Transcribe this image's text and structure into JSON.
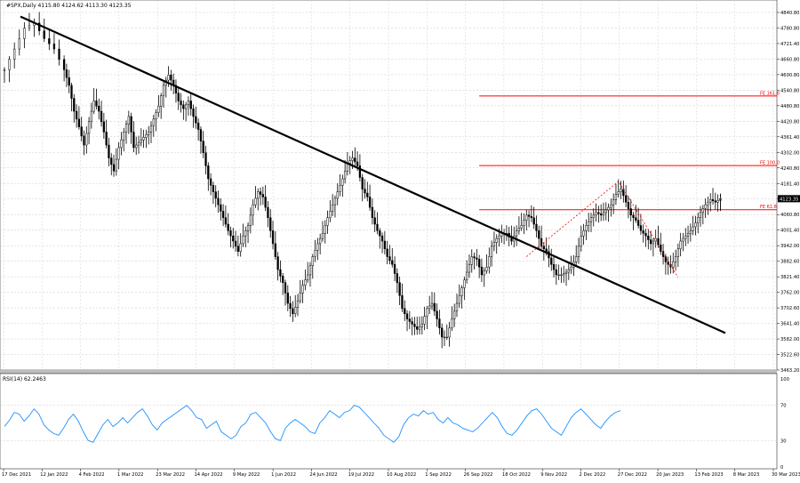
{
  "window": {
    "symbol_info": "#SPX,Daily  4115.80 4124.62 4113.30 4123.35",
    "rsi_label": "RSI(14) 62.2463"
  },
  "chart_data": [
    {
      "type": "candlestick",
      "title": "#SPX,Daily",
      "ohlc_last": {
        "open": 4115.8,
        "high": 4124.62,
        "low": 4113.3,
        "close": 4123.35
      },
      "current_price_label": "4123.35",
      "y_ticks": [
        "4840.80",
        "4780.80",
        "4721.40",
        "4660.80",
        "4600.80",
        "4540.80",
        "4480.80",
        "4420.80",
        "4361.40",
        "4302.00",
        "4240.80",
        "4181.40",
        "4120.80",
        "4060.80",
        "4001.40",
        "3942.00",
        "3882.60",
        "3821.40",
        "3762.00",
        "3702.60",
        "3641.40",
        "3582.00",
        "3522.60",
        "3463.20"
      ],
      "ylim": [
        3463.2,
        4862
      ],
      "x_ticks": [
        "17 Dec 2021",
        "12 Jan 2022",
        "4 Feb 2022",
        "1 Mar 2022",
        "23 Mar 2022",
        "14 Apr 2022",
        "9 May 2022",
        "1 Jun 2022",
        "24 Jun 2022",
        "19 Jul 2022",
        "10 Aug 2022",
        "1 Sep 2022",
        "26 Sep 2022",
        "18 Oct 2022",
        "9 Nov 2022",
        "2 Dec 2022",
        "27 Dec 2022",
        "20 Jan 2023",
        "13 Feb 2023",
        "8 Mar 2023",
        "30 Mar 2023"
      ],
      "close_path": [
        [
          0,
          4620
        ],
        [
          4,
          4700
        ],
        [
          8,
          4780
        ],
        [
          12,
          4800
        ],
        [
          16,
          4740
        ],
        [
          20,
          4700
        ],
        [
          24,
          4620
        ],
        [
          26,
          4560
        ],
        [
          28,
          4460
        ],
        [
          30,
          4400
        ],
        [
          32,
          4330
        ],
        [
          34,
          4420
        ],
        [
          36,
          4500
        ],
        [
          38,
          4460
        ],
        [
          40,
          4380
        ],
        [
          42,
          4280
        ],
        [
          44,
          4230
        ],
        [
          46,
          4320
        ],
        [
          48,
          4380
        ],
        [
          50,
          4440
        ],
        [
          52,
          4320
        ],
        [
          54,
          4340
        ],
        [
          56,
          4360
        ],
        [
          58,
          4380
        ],
        [
          60,
          4430
        ],
        [
          62,
          4480
        ],
        [
          64,
          4560
        ],
        [
          66,
          4600
        ],
        [
          68,
          4560
        ],
        [
          70,
          4500
        ],
        [
          72,
          4470
        ],
        [
          74,
          4500
        ],
        [
          76,
          4440
        ],
        [
          78,
          4390
        ],
        [
          80,
          4300
        ],
        [
          82,
          4200
        ],
        [
          84,
          4150
        ],
        [
          86,
          4100
        ],
        [
          88,
          4050
        ],
        [
          90,
          4000
        ],
        [
          92,
          3960
        ],
        [
          94,
          3920
        ],
        [
          96,
          3980
        ],
        [
          98,
          4020
        ],
        [
          100,
          4100
        ],
        [
          102,
          4150
        ],
        [
          104,
          4130
        ],
        [
          106,
          4050
        ],
        [
          108,
          3950
        ],
        [
          110,
          3850
        ],
        [
          112,
          3800
        ],
        [
          114,
          3720
        ],
        [
          116,
          3680
        ],
        [
          118,
          3730
        ],
        [
          120,
          3790
        ],
        [
          122,
          3830
        ],
        [
          124,
          3900
        ],
        [
          126,
          3950
        ],
        [
          128,
          3990
        ],
        [
          130,
          4050
        ],
        [
          132,
          4100
        ],
        [
          134,
          4150
        ],
        [
          136,
          4200
        ],
        [
          138,
          4260
        ],
        [
          140,
          4280
        ],
        [
          142,
          4250
        ],
        [
          144,
          4160
        ],
        [
          146,
          4130
        ],
        [
          148,
          4050
        ],
        [
          150,
          4000
        ],
        [
          152,
          3960
        ],
        [
          154,
          3900
        ],
        [
          156,
          3870
        ],
        [
          158,
          3800
        ],
        [
          160,
          3700
        ],
        [
          162,
          3660
        ],
        [
          164,
          3640
        ],
        [
          166,
          3620
        ],
        [
          168,
          3640
        ],
        [
          170,
          3700
        ],
        [
          172,
          3720
        ],
        [
          174,
          3660
        ],
        [
          176,
          3590
        ],
        [
          178,
          3590
        ],
        [
          180,
          3660
        ],
        [
          182,
          3720
        ],
        [
          184,
          3780
        ],
        [
          186,
          3840
        ],
        [
          188,
          3900
        ],
        [
          190,
          3890
        ],
        [
          192,
          3830
        ],
        [
          194,
          3860
        ],
        [
          196,
          3940
        ],
        [
          198,
          3970
        ],
        [
          200,
          3990
        ],
        [
          202,
          3990
        ],
        [
          204,
          3960
        ],
        [
          206,
          4000
        ],
        [
          208,
          4020
        ],
        [
          210,
          4060
        ],
        [
          212,
          4050
        ],
        [
          214,
          4000
        ],
        [
          216,
          3940
        ],
        [
          218,
          3920
        ],
        [
          220,
          3870
        ],
        [
          222,
          3830
        ],
        [
          224,
          3830
        ],
        [
          226,
          3840
        ],
        [
          228,
          3860
        ],
        [
          230,
          3900
        ],
        [
          232,
          3980
        ],
        [
          234,
          4020
        ],
        [
          236,
          4050
        ],
        [
          238,
          4070
        ],
        [
          240,
          4060
        ],
        [
          242,
          4080
        ],
        [
          244,
          4100
        ],
        [
          246,
          4140
        ],
        [
          248,
          4160
        ],
        [
          250,
          4110
        ],
        [
          252,
          4060
        ],
        [
          254,
          4040
        ],
        [
          256,
          4000
        ],
        [
          258,
          3980
        ],
        [
          260,
          3950
        ],
        [
          262,
          3970
        ],
        [
          264,
          3920
        ],
        [
          266,
          3880
        ],
        [
          268,
          3860
        ],
        [
          270,
          3900
        ],
        [
          272,
          3960
        ],
        [
          274,
          3980
        ],
        [
          276,
          4000
        ],
        [
          278,
          4030
        ],
        [
          280,
          4070
        ],
        [
          282,
          4100
        ],
        [
          284,
          4120
        ],
        [
          286,
          4110
        ],
        [
          288,
          4123
        ]
      ],
      "x_domain": [
        0,
        290
      ],
      "trendline": {
        "from": [
          0,
          4825
        ],
        "to": [
          290,
          3606
        ],
        "color": "#000000"
      },
      "fibonacci_levels": [
        {
          "label": "FE 161.8",
          "value": 4519,
          "color": "#ff0000"
        },
        {
          "label": "FE 100.0",
          "value": 4251,
          "color": "#ff0000"
        },
        {
          "label": "FE 61.8",
          "value": 4081,
          "color": "#ff0000"
        }
      ],
      "fib_anchor_x": 191,
      "fe_projection_points": [
        [
          210,
          3900
        ],
        [
          247,
          4190
        ],
        [
          271,
          3820
        ]
      ]
    },
    {
      "type": "line",
      "title": "RSI(14) 62.2463",
      "y_ticks": [
        "100",
        "70",
        "30",
        "0"
      ],
      "ylim": [
        0,
        100
      ],
      "levels": [
        70,
        30
      ],
      "color": "#1e90ff",
      "values": [
        46,
        53,
        62,
        60,
        52,
        58,
        66,
        60,
        48,
        42,
        38,
        36,
        44,
        54,
        60,
        52,
        40,
        30,
        28,
        38,
        48,
        54,
        46,
        50,
        56,
        50,
        56,
        62,
        66,
        58,
        48,
        42,
        50,
        54,
        58,
        62,
        66,
        70,
        64,
        56,
        54,
        44,
        48,
        52,
        40,
        36,
        32,
        36,
        46,
        50,
        60,
        62,
        56,
        50,
        40,
        32,
        30,
        44,
        50,
        54,
        50,
        46,
        40,
        38,
        50,
        56,
        64,
        60,
        56,
        62,
        64,
        70,
        68,
        62,
        56,
        50,
        44,
        36,
        32,
        28,
        34,
        48,
        56,
        60,
        58,
        64,
        60,
        62,
        54,
        50,
        56,
        50,
        48,
        44,
        42,
        40,
        44,
        50,
        56,
        62,
        56,
        46,
        38,
        36,
        42,
        50,
        58,
        64,
        66,
        60,
        52,
        44,
        40,
        36,
        46,
        56,
        62,
        66,
        60,
        54,
        48,
        44,
        52,
        58,
        62,
        64
      ]
    }
  ]
}
